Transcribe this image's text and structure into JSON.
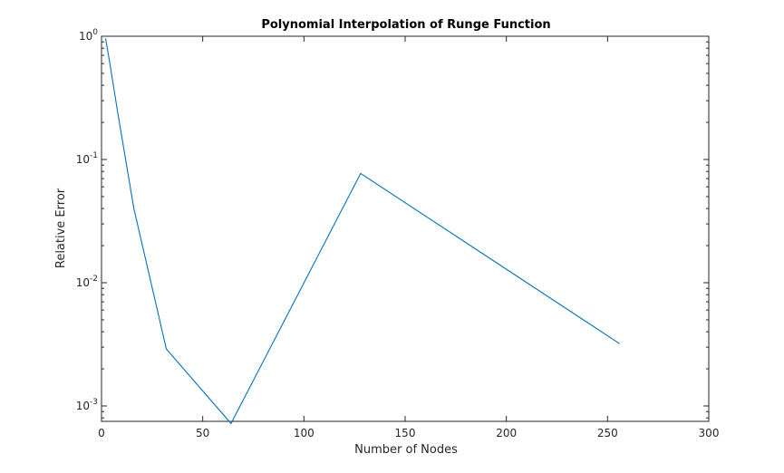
{
  "chart_data": {
    "type": "line",
    "title": "Polynomial Interpolation of Runge Function",
    "xlabel": "Number of Nodes",
    "ylabel": "Relative Error",
    "xlim": [
      0,
      300
    ],
    "ylim": [
      0.00075,
      1
    ],
    "yscale": "log",
    "grid": false,
    "box": true,
    "x_ticks": [
      0,
      50,
      100,
      150,
      200,
      250,
      300
    ],
    "y_ticks": [
      {
        "value": 0.001,
        "base": "10",
        "exp": "-3"
      },
      {
        "value": 0.01,
        "base": "10",
        "exp": "-2"
      },
      {
        "value": 0.1,
        "base": "10",
        "exp": "-1"
      },
      {
        "value": 1,
        "base": "10",
        "exp": "0"
      }
    ],
    "series": [
      {
        "color": "#0072BD",
        "x": [
          2,
          4,
          8,
          16,
          32,
          64,
          128,
          256
        ],
        "y": [
          0.96,
          0.62,
          0.24,
          0.04,
          0.0029,
          0.00072,
          0.077,
          0.0032
        ]
      }
    ]
  }
}
